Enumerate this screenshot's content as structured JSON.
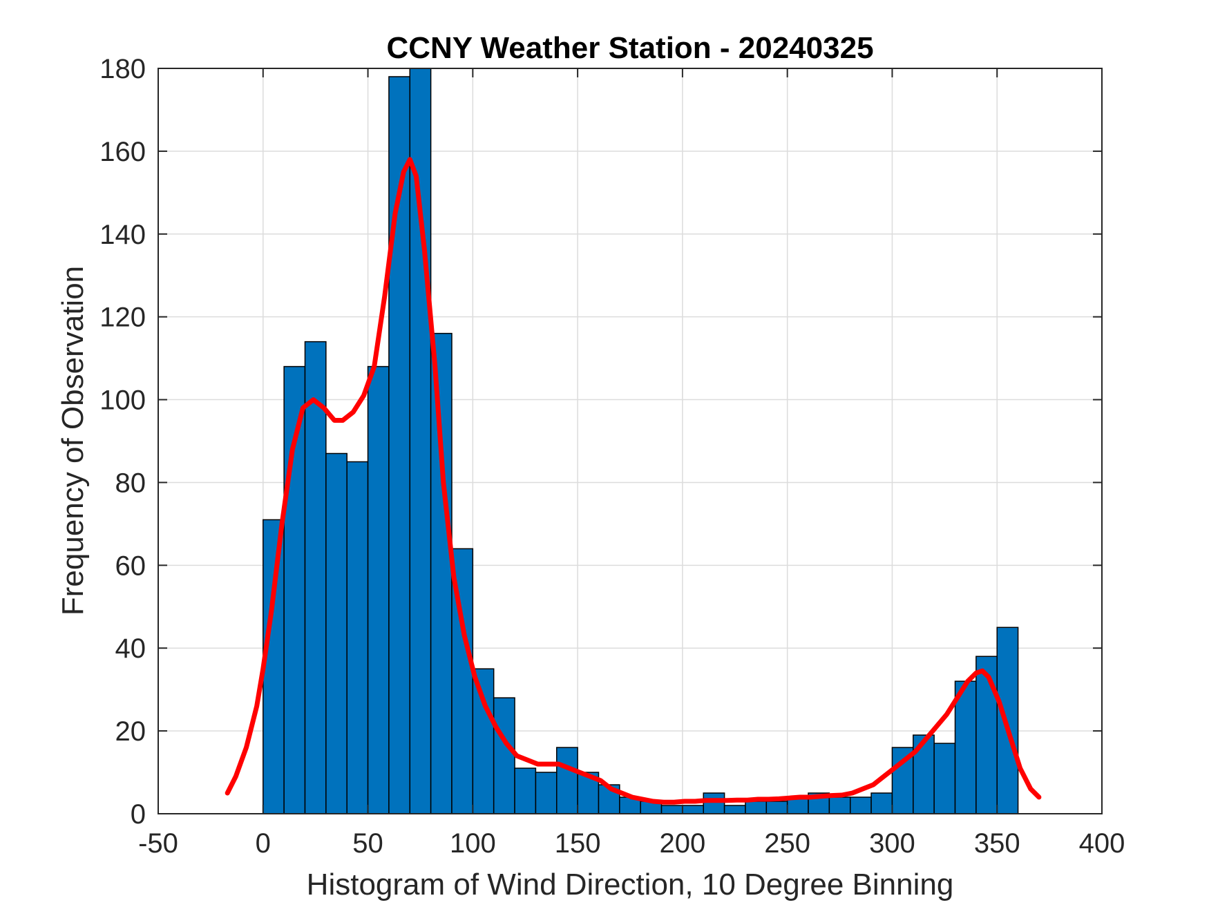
{
  "chart_data": {
    "type": "bar",
    "title": "CCNY Weather Station - 20240325",
    "xlabel": "Histogram of Wind Direction, 10 Degree Binning",
    "ylabel": "Frequency of Observation",
    "xlim": [
      -50,
      400
    ],
    "ylim": [
      0,
      180
    ],
    "xticks": [
      -50,
      0,
      50,
      100,
      150,
      200,
      250,
      300,
      350,
      400
    ],
    "yticks": [
      0,
      20,
      40,
      60,
      80,
      100,
      120,
      140,
      160,
      180
    ],
    "grid": true,
    "bin_width": 10,
    "bins": {
      "edges_start": [
        0,
        10,
        20,
        30,
        40,
        50,
        60,
        70,
        80,
        90,
        100,
        110,
        120,
        130,
        140,
        150,
        160,
        170,
        180,
        190,
        200,
        210,
        220,
        230,
        240,
        250,
        260,
        270,
        280,
        290,
        300,
        310,
        320,
        330,
        340,
        350
      ],
      "values": [
        71,
        108,
        114,
        87,
        85,
        108,
        178,
        180,
        116,
        64,
        35,
        28,
        11,
        10,
        16,
        10,
        7,
        4,
        3,
        2,
        2,
        5,
        2,
        3,
        3,
        4,
        5,
        4,
        4,
        5,
        16,
        19,
        17,
        32,
        38,
        45
      ]
    },
    "density_curve": {
      "x": [
        -17,
        -13,
        -8,
        -3,
        0,
        4,
        9,
        14,
        19,
        24,
        29,
        34,
        38,
        43,
        48,
        53,
        58,
        63,
        67,
        70,
        73,
        77,
        82,
        86,
        91,
        96,
        101,
        106,
        111,
        116,
        121,
        126,
        131,
        136,
        141,
        146,
        151,
        156,
        161,
        166,
        171,
        176,
        181,
        186,
        191,
        196,
        201,
        206,
        211,
        216,
        221,
        226,
        231,
        236,
        241,
        246,
        251,
        256,
        261,
        266,
        271,
        276,
        281,
        286,
        291,
        296,
        301,
        306,
        311,
        316,
        321,
        326,
        331,
        336,
        340,
        343,
        346,
        351,
        356,
        361,
        366,
        370
      ],
      "y": [
        5,
        9,
        16,
        26,
        35,
        49,
        70,
        88,
        98,
        100,
        98,
        95,
        95,
        97,
        101,
        108,
        125,
        145,
        155,
        158,
        154,
        136,
        108,
        80,
        57,
        43,
        33,
        26,
        21,
        17,
        14,
        13,
        12,
        12,
        12,
        11,
        10,
        9,
        8,
        6,
        5,
        4,
        3.5,
        3,
        2.8,
        2.8,
        3,
        3,
        3.2,
        3.2,
        3.2,
        3.3,
        3.3,
        3.5,
        3.5,
        3.6,
        3.8,
        4,
        4,
        4.2,
        4.4,
        4.5,
        5,
        6,
        7,
        9,
        11,
        13,
        15,
        18,
        21,
        24,
        28,
        32,
        34,
        34.5,
        33,
        27,
        19,
        11,
        6,
        4
      ]
    },
    "bar_color": "#0072bd",
    "bar_edge_color": "#000000",
    "curve_color": "#ff0000"
  }
}
